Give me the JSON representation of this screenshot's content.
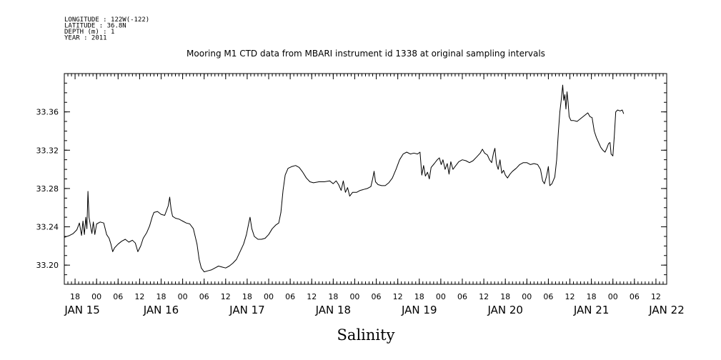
{
  "header": {
    "meta_lines": [
      "LONGITUDE : 122W(-122)",
      "LATITUDE : 36.8N",
      "DEPTH (m) : 1",
      "YEAR : 2011"
    ]
  },
  "chart_data": {
    "type": "line",
    "title": "Mooring M1 CTD data from MBARI instrument id 1338 at original sampling intervals",
    "xlabel": "Salinity",
    "ylabel": "",
    "x_unit": "hours since JAN 15 00:00 (2011)",
    "xlim": [
      15,
      183
    ],
    "ylim": [
      33.18,
      33.4
    ],
    "yticks": [
      33.2,
      33.24,
      33.28,
      33.32,
      33.36
    ],
    "ytick_labels": [
      "33.20",
      "33.24",
      "33.28",
      "33.32",
      "33.36"
    ],
    "hour_ticks": [
      {
        "x": 18,
        "label": "18"
      },
      {
        "x": 24,
        "label": "00"
      },
      {
        "x": 30,
        "label": "06"
      },
      {
        "x": 36,
        "label": "12"
      },
      {
        "x": 42,
        "label": "18"
      },
      {
        "x": 48,
        "label": "00"
      },
      {
        "x": 54,
        "label": "06"
      },
      {
        "x": 60,
        "label": "12"
      },
      {
        "x": 66,
        "label": "18"
      },
      {
        "x": 72,
        "label": "00"
      },
      {
        "x": 78,
        "label": "06"
      },
      {
        "x": 84,
        "label": "12"
      },
      {
        "x": 90,
        "label": "18"
      },
      {
        "x": 96,
        "label": "00"
      },
      {
        "x": 102,
        "label": "06"
      },
      {
        "x": 108,
        "label": "12"
      },
      {
        "x": 114,
        "label": "18"
      },
      {
        "x": 120,
        "label": "00"
      },
      {
        "x": 126,
        "label": "06"
      },
      {
        "x": 132,
        "label": "12"
      },
      {
        "x": 138,
        "label": "18"
      },
      {
        "x": 144,
        "label": "00"
      },
      {
        "x": 150,
        "label": "06"
      },
      {
        "x": 156,
        "label": "12"
      },
      {
        "x": 162,
        "label": "18"
      },
      {
        "x": 168,
        "label": "00"
      },
      {
        "x": 174,
        "label": "06"
      },
      {
        "x": 180,
        "label": "12"
      }
    ],
    "day_ticks": [
      {
        "x": 20,
        "label": "JAN 15"
      },
      {
        "x": 42,
        "label": "JAN 16"
      },
      {
        "x": 66,
        "label": "JAN 17"
      },
      {
        "x": 90,
        "label": "JAN 18"
      },
      {
        "x": 114,
        "label": "JAN 19"
      },
      {
        "x": 138,
        "label": "JAN 20"
      },
      {
        "x": 162,
        "label": "JAN 21"
      },
      {
        "x": 183,
        "label": "JAN 22"
      }
    ],
    "series": [
      {
        "color": "#000000",
        "points": [
          [
            15,
            33.229
          ],
          [
            16.5,
            33.231
          ],
          [
            17.5,
            33.233
          ],
          [
            18.5,
            33.237
          ],
          [
            19.2,
            33.244
          ],
          [
            19.8,
            33.231
          ],
          [
            20.2,
            33.246
          ],
          [
            20.6,
            33.232
          ],
          [
            21.0,
            33.25
          ],
          [
            21.3,
            33.238
          ],
          [
            21.6,
            33.277
          ],
          [
            21.9,
            33.25
          ],
          [
            22.3,
            33.241
          ],
          [
            22.7,
            33.233
          ],
          [
            23.1,
            33.245
          ],
          [
            23.5,
            33.232
          ],
          [
            24.0,
            33.243
          ],
          [
            25.0,
            33.245
          ],
          [
            26.0,
            33.244
          ],
          [
            26.8,
            33.232
          ],
          [
            27.5,
            33.228
          ],
          [
            28.0,
            33.222
          ],
          [
            28.5,
            33.214
          ],
          [
            29.0,
            33.218
          ],
          [
            30.0,
            33.222
          ],
          [
            31.0,
            33.225
          ],
          [
            32.0,
            33.227
          ],
          [
            33.0,
            33.224
          ],
          [
            34.0,
            33.226
          ],
          [
            34.8,
            33.223
          ],
          [
            35.5,
            33.214
          ],
          [
            36.3,
            33.22
          ],
          [
            37.0,
            33.228
          ],
          [
            38.0,
            33.234
          ],
          [
            38.8,
            33.241
          ],
          [
            39.5,
            33.25
          ],
          [
            40.0,
            33.255
          ],
          [
            41.0,
            33.256
          ],
          [
            42.0,
            33.253
          ],
          [
            43.0,
            33.252
          ],
          [
            43.6,
            33.258
          ],
          [
            44.0,
            33.262
          ],
          [
            44.4,
            33.271
          ],
          [
            44.8,
            33.258
          ],
          [
            45.2,
            33.251
          ],
          [
            46.0,
            33.249
          ],
          [
            47.0,
            33.248
          ],
          [
            48.0,
            33.246
          ],
          [
            49.0,
            33.244
          ],
          [
            50.0,
            33.243
          ],
          [
            51.0,
            33.238
          ],
          [
            52.0,
            33.222
          ],
          [
            52.6,
            33.206
          ],
          [
            53.2,
            33.197
          ],
          [
            54.0,
            33.193
          ],
          [
            55.0,
            33.194
          ],
          [
            56.0,
            33.195
          ],
          [
            57.0,
            33.197
          ],
          [
            58.0,
            33.199
          ],
          [
            59.0,
            33.198
          ],
          [
            60.0,
            33.197
          ],
          [
            61.0,
            33.199
          ],
          [
            62.0,
            33.202
          ],
          [
            63.0,
            33.206
          ],
          [
            64.0,
            33.214
          ],
          [
            65.0,
            33.222
          ],
          [
            65.8,
            33.232
          ],
          [
            66.4,
            33.243
          ],
          [
            66.8,
            33.25
          ],
          [
            67.3,
            33.238
          ],
          [
            68.0,
            33.23
          ],
          [
            69.0,
            33.227
          ],
          [
            70.0,
            33.227
          ],
          [
            71.0,
            33.228
          ],
          [
            72.0,
            33.232
          ],
          [
            73.0,
            33.238
          ],
          [
            74.0,
            33.242
          ],
          [
            74.8,
            33.244
          ],
          [
            75.4,
            33.255
          ],
          [
            76.0,
            33.278
          ],
          [
            76.6,
            33.294
          ],
          [
            77.4,
            33.301
          ],
          [
            78.5,
            33.303
          ],
          [
            79.5,
            33.304
          ],
          [
            80.5,
            33.302
          ],
          [
            81.5,
            33.297
          ],
          [
            82.5,
            33.291
          ],
          [
            83.5,
            33.287
          ],
          [
            84.5,
            33.286
          ],
          [
            86.0,
            33.287
          ],
          [
            87.5,
            33.287
          ],
          [
            89.0,
            33.288
          ],
          [
            90.0,
            33.285
          ],
          [
            90.8,
            33.288
          ],
          [
            91.5,
            33.284
          ],
          [
            92.2,
            33.278
          ],
          [
            92.8,
            33.288
          ],
          [
            93.4,
            33.276
          ],
          [
            94.0,
            33.281
          ],
          [
            94.6,
            33.272
          ],
          [
            95.4,
            33.276
          ],
          [
            96.5,
            33.276
          ],
          [
            97.5,
            33.278
          ],
          [
            98.5,
            33.279
          ],
          [
            99.5,
            33.28
          ],
          [
            100.5,
            33.282
          ],
          [
            101.0,
            33.29
          ],
          [
            101.4,
            33.298
          ],
          [
            101.8,
            33.287
          ],
          [
            102.5,
            33.284
          ],
          [
            103.5,
            33.283
          ],
          [
            104.5,
            33.283
          ],
          [
            105.5,
            33.286
          ],
          [
            106.5,
            33.291
          ],
          [
            107.5,
            33.3
          ],
          [
            108.5,
            33.31
          ],
          [
            109.5,
            33.316
          ],
          [
            110.5,
            33.318
          ],
          [
            111.5,
            33.316
          ],
          [
            112.5,
            33.317
          ],
          [
            113.5,
            33.316
          ],
          [
            114.2,
            33.318
          ],
          [
            114.7,
            33.294
          ],
          [
            115.2,
            33.304
          ],
          [
            115.7,
            33.293
          ],
          [
            116.3,
            33.297
          ],
          [
            116.8,
            33.29
          ],
          [
            117.3,
            33.302
          ],
          [
            118.2,
            33.306
          ],
          [
            119.0,
            33.31
          ],
          [
            119.6,
            33.312
          ],
          [
            120.1,
            33.305
          ],
          [
            120.6,
            33.31
          ],
          [
            121.2,
            33.3
          ],
          [
            121.8,
            33.306
          ],
          [
            122.3,
            33.295
          ],
          [
            122.8,
            33.308
          ],
          [
            123.4,
            33.3
          ],
          [
            124.0,
            33.303
          ],
          [
            125.0,
            33.308
          ],
          [
            126.0,
            33.31
          ],
          [
            127.0,
            33.309
          ],
          [
            128.0,
            33.307
          ],
          [
            129.0,
            33.309
          ],
          [
            130.0,
            33.313
          ],
          [
            131.0,
            33.317
          ],
          [
            131.6,
            33.321
          ],
          [
            132.2,
            33.317
          ],
          [
            133.0,
            33.315
          ],
          [
            133.6,
            33.31
          ],
          [
            134.2,
            33.307
          ],
          [
            134.7,
            33.317
          ],
          [
            135.1,
            33.322
          ],
          [
            135.5,
            33.306
          ],
          [
            136.0,
            33.3
          ],
          [
            136.5,
            33.31
          ],
          [
            137.0,
            33.296
          ],
          [
            137.5,
            33.299
          ],
          [
            138.0,
            33.294
          ],
          [
            138.6,
            33.291
          ],
          [
            139.3,
            33.295
          ],
          [
            140.0,
            33.298
          ],
          [
            141.0,
            33.301
          ],
          [
            142.0,
            33.305
          ],
          [
            143.0,
            33.307
          ],
          [
            144.0,
            33.307
          ],
          [
            145.0,
            33.305
          ],
          [
            146.0,
            33.306
          ],
          [
            147.0,
            33.305
          ],
          [
            147.8,
            33.3
          ],
          [
            148.4,
            33.288
          ],
          [
            148.9,
            33.285
          ],
          [
            149.5,
            33.293
          ],
          [
            150.0,
            33.303
          ],
          [
            150.4,
            33.283
          ],
          [
            151.0,
            33.285
          ],
          [
            151.8,
            33.292
          ],
          [
            152.3,
            33.31
          ],
          [
            152.8,
            33.34
          ],
          [
            153.2,
            33.36
          ],
          [
            153.6,
            33.373
          ],
          [
            154.0,
            33.388
          ],
          [
            154.3,
            33.372
          ],
          [
            154.6,
            33.378
          ],
          [
            154.9,
            33.363
          ],
          [
            155.2,
            33.381
          ],
          [
            155.5,
            33.37
          ],
          [
            155.8,
            33.355
          ],
          [
            156.3,
            33.351
          ],
          [
            157.0,
            33.351
          ],
          [
            158.0,
            33.35
          ],
          [
            159.0,
            33.353
          ],
          [
            160.0,
            33.356
          ],
          [
            161.0,
            33.359
          ],
          [
            161.6,
            33.355
          ],
          [
            162.2,
            33.354
          ],
          [
            162.8,
            33.34
          ],
          [
            163.4,
            33.333
          ],
          [
            164.0,
            33.328
          ],
          [
            164.6,
            33.323
          ],
          [
            165.2,
            33.32
          ],
          [
            165.8,
            33.318
          ],
          [
            166.3,
            33.322
          ],
          [
            166.8,
            33.327
          ],
          [
            167.2,
            33.328
          ],
          [
            167.5,
            33.316
          ],
          [
            168.0,
            33.314
          ],
          [
            168.4,
            33.335
          ],
          [
            168.8,
            33.36
          ],
          [
            169.3,
            33.362
          ],
          [
            170.0,
            33.361
          ],
          [
            170.6,
            33.362
          ],
          [
            171.0,
            33.358
          ]
        ]
      }
    ]
  }
}
